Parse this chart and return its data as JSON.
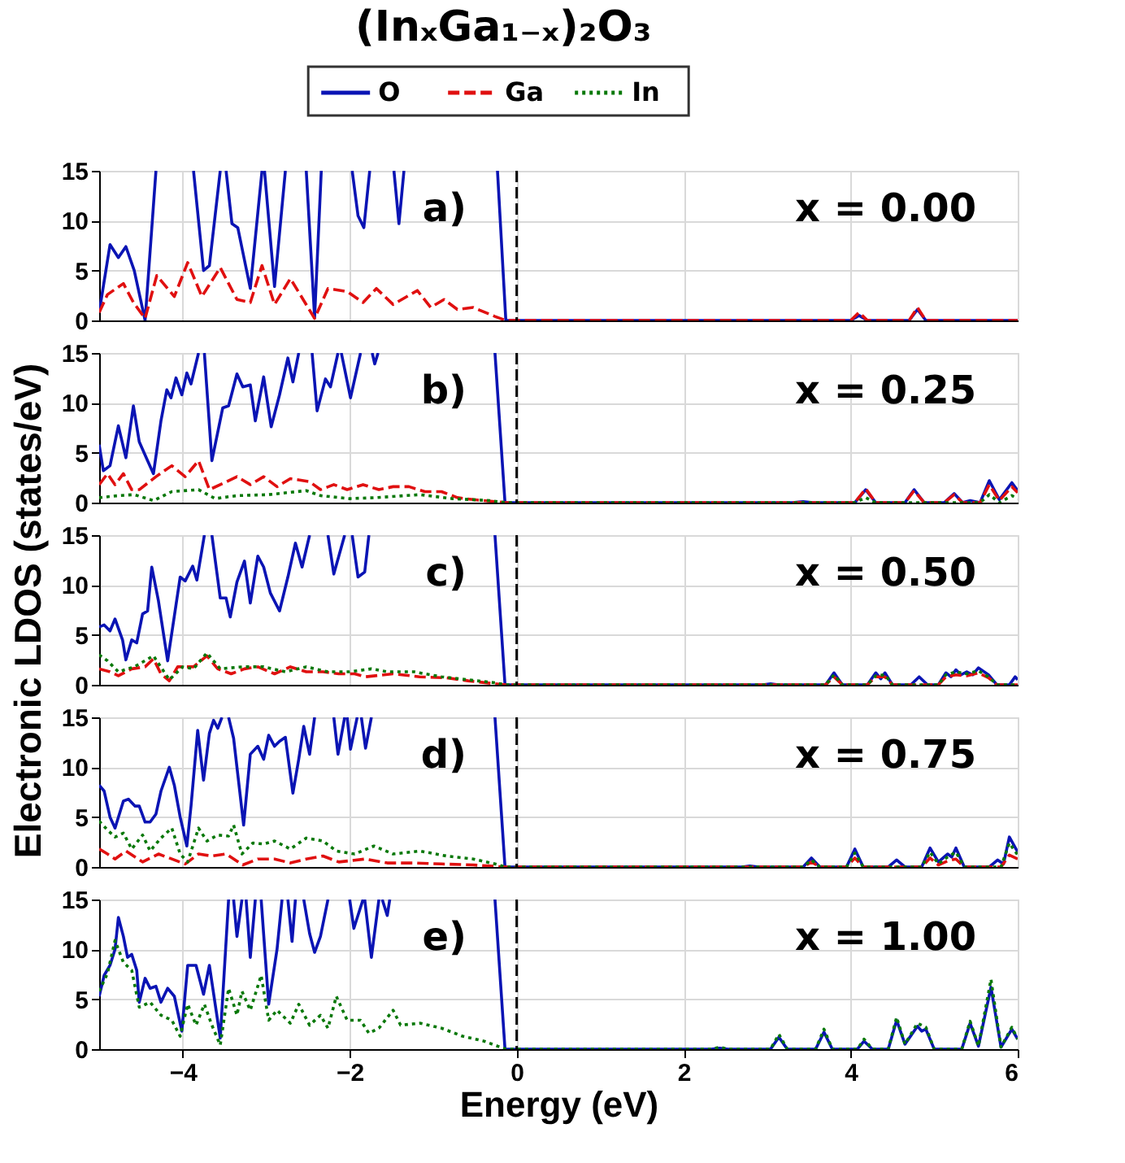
{
  "chart_data": [
    {
      "type": "line",
      "title": "(InₓGa₁₋ₓ)₂O₃",
      "legend": "top",
      "xlim": [
        -5,
        6
      ],
      "xticks": [
        -4,
        -2,
        0,
        2,
        4,
        6
      ],
      "ylim": [
        0,
        15
      ],
      "yticks": [
        0,
        5,
        10,
        15
      ],
      "grid": true,
      "tick_labels": "y",
      "annotations": [
        "a)",
        "x = 0.00"
      ],
      "ref_lines": [
        {
          "axis": "x",
          "value": 0,
          "color": "#000000",
          "line_style": "dashed"
        }
      ],
      "series": [
        {
          "name": "O",
          "color": "#0a14b4",
          "line_style": "solid",
          "x": [
            -5.0,
            -4.87,
            -4.77,
            -4.68,
            -4.58,
            -4.45,
            -4.32,
            -4.26,
            -3.87,
            -3.75,
            -3.68,
            -3.55,
            -3.52,
            -3.48,
            -3.41,
            -3.34,
            -3.19,
            -3.05,
            -3.04,
            -3.02,
            -2.9,
            -2.77,
            -2.6,
            -2.52,
            -2.42,
            -2.34,
            -2.1,
            -1.97,
            -1.9,
            -1.83,
            -1.76,
            -1.6,
            -1.47,
            -1.41,
            -1.35,
            -0.8,
            -0.23,
            -0.13,
            4.0,
            4.1,
            4.2,
            4.7,
            4.8,
            4.9,
            6
          ],
          "values": [
            0.8,
            7.6,
            6.3,
            7.4,
            5,
            0,
            15,
            null,
            15,
            5,
            5.5,
            15,
            null,
            15,
            9.7,
            9.3,
            3.2,
            15,
            null,
            15,
            3.4,
            15,
            null,
            15,
            0.3,
            15,
            null,
            15,
            10.5,
            9.3,
            15,
            null,
            15,
            9.7,
            15,
            null,
            15,
            0,
            0,
            0.5,
            0,
            0,
            1.1,
            0,
            0
          ]
        },
        {
          "name": "Ga",
          "color": "#e01010",
          "line_style": "dashed",
          "x": [
            -5.0,
            -4.9,
            -4.71,
            -4.59,
            -4.45,
            -4.31,
            -4.1,
            -3.94,
            -3.77,
            -3.55,
            -3.35,
            -3.19,
            -3.05,
            -2.9,
            -2.71,
            -2.42,
            -2.26,
            -2.03,
            -1.84,
            -1.68,
            -1.48,
            -1.19,
            -1.03,
            -0.87,
            -0.71,
            -0.52,
            -0.26,
            -0.13,
            4.0,
            4.1,
            4.2,
            4.7,
            4.8,
            4.9,
            6
          ],
          "values": [
            0.8,
            2.6,
            3.7,
            1.8,
            0.2,
            4.5,
            2.4,
            5.8,
            2.4,
            5.3,
            2.1,
            1.8,
            5.5,
            1.6,
            4.2,
            0.2,
            3.2,
            2.9,
            1.8,
            3.2,
            1.6,
            3.0,
            1.3,
            2.1,
            1.1,
            1.3,
            0.4,
            0,
            0,
            0.8,
            0,
            0,
            1.3,
            0,
            0
          ]
        }
      ]
    },
    {
      "type": "line",
      "xlim": [
        -5,
        6
      ],
      "xticks": [
        -4,
        -2,
        0,
        2,
        4,
        6
      ],
      "ylim": [
        0,
        15
      ],
      "yticks": [
        0,
        5,
        10,
        15
      ],
      "grid": true,
      "tick_labels": "y",
      "annotations": [
        "b)",
        "x = 0.25"
      ],
      "ref_lines": [
        {
          "axis": "x",
          "value": 0,
          "color": "#000000",
          "line_style": "dashed"
        }
      ],
      "series": [
        {
          "name": "O",
          "color": "#0a14b4",
          "line_style": "solid",
          "x": [
            -5.0,
            -4.95,
            -4.87,
            -4.77,
            -4.68,
            -4.59,
            -4.52,
            -4.42,
            -4.35,
            -4.26,
            -4.19,
            -4.14,
            -4.08,
            -4.01,
            -3.95,
            -3.9,
            -3.81,
            -3.78,
            -3.74,
            -3.65,
            -3.52,
            -3.45,
            -3.35,
            -3.28,
            -3.19,
            -3.13,
            -3.03,
            -2.94,
            -2.84,
            -2.74,
            -2.68,
            -2.61,
            -2.55,
            -2.45,
            -2.39,
            -2.29,
            -2.23,
            -2.14,
            -2.12,
            -2.1,
            -1.99,
            -1.87,
            -1.8,
            -1.73,
            -1.7,
            -1.66,
            -1.0,
            -0.26,
            -0.14,
            3.3,
            3.43,
            3.55,
            4.05,
            4.18,
            4.3,
            4.65,
            4.76,
            4.88,
            5.12,
            5.24,
            5.34,
            5.43,
            5.55,
            5.66,
            5.78,
            5.93,
            6
          ],
          "values": [
            5.8,
            3.2,
            3.7,
            7.7,
            4.5,
            9.7,
            6.1,
            4.2,
            2.9,
            8.2,
            11.3,
            10.5,
            12.5,
            10.8,
            13,
            11.9,
            15,
            null,
            15,
            4.2,
            9.5,
            9.7,
            12.9,
            11.6,
            11.8,
            8.2,
            12.6,
            7.6,
            10.8,
            14.5,
            12.1,
            15,
            null,
            15,
            9.2,
            12.4,
            11.6,
            15,
            null,
            15,
            10.5,
            15,
            null,
            15,
            13.9,
            15,
            null,
            15,
            0,
            0,
            0.1,
            0,
            0,
            1.3,
            0,
            0,
            1.3,
            0,
            0,
            0.9,
            0,
            0.2,
            0,
            2.2,
            0.3,
            2.0,
            1.2
          ]
        },
        {
          "name": "Ga",
          "color": "#e01010",
          "line_style": "dashed",
          "x": [
            -5.0,
            -4.9,
            -4.81,
            -4.71,
            -4.61,
            -4.52,
            -4.32,
            -4.13,
            -3.97,
            -3.81,
            -3.68,
            -3.55,
            -3.35,
            -3.19,
            -3.03,
            -2.87,
            -2.71,
            -2.48,
            -2.35,
            -2.19,
            -2.03,
            -1.84,
            -1.65,
            -1.48,
            -1.29,
            -1.1,
            -0.9,
            -0.71,
            -0.52,
            -0.26,
            -0.13,
            4.05,
            4.18,
            4.3,
            4.65,
            4.76,
            4.88,
            5.12,
            5.24,
            5.34,
            5.55,
            5.66,
            5.78,
            5.93,
            6
          ],
          "values": [
            1.8,
            2.9,
            1.8,
            2.9,
            1.3,
            1.3,
            2.6,
            3.7,
            2.6,
            4.2,
            1.3,
            1.8,
            2.6,
            1.8,
            2.6,
            1.6,
            2.4,
            2.1,
            1.3,
            1.8,
            1.3,
            1.8,
            1.3,
            1.6,
            1.6,
            1.1,
            1.1,
            0.5,
            0.3,
            0.1,
            0,
            0,
            1.4,
            0,
            0,
            1.2,
            0,
            0,
            0.8,
            0,
            0,
            1.8,
            0.2,
            1.6,
            1.0
          ]
        },
        {
          "name": "In",
          "color": "#087808",
          "line_style": "dotted",
          "x": [
            -5.0,
            -4.77,
            -4.58,
            -4.35,
            -4.13,
            -3.81,
            -3.61,
            -3.35,
            -2.97,
            -2.52,
            -2.35,
            -2.0,
            -1.68,
            -1.16,
            -0.77,
            -0.32,
            -0.13,
            4.05,
            4.18,
            4.3,
            5.55,
            5.66,
            5.78,
            5.93,
            6
          ],
          "values": [
            0.5,
            0.7,
            0.8,
            0.2,
            1.1,
            1.3,
            0.4,
            0.7,
            0.8,
            1.2,
            0.7,
            0.4,
            0.5,
            0.8,
            0.4,
            0.2,
            0,
            0,
            0.5,
            0,
            0,
            0.8,
            0,
            0.7,
            0.4
          ]
        }
      ]
    },
    {
      "type": "line",
      "ylabel": "Electronic LDOS (states/eV)",
      "xlim": [
        -5,
        6
      ],
      "xticks": [
        -4,
        -2,
        0,
        2,
        4,
        6
      ],
      "ylim": [
        0,
        15
      ],
      "yticks": [
        0,
        5,
        10,
        15
      ],
      "grid": true,
      "tick_labels": "y",
      "annotations": [
        "c)",
        "x = 0.50"
      ],
      "ref_lines": [
        {
          "axis": "x",
          "value": 0,
          "color": "#000000",
          "line_style": "dashed"
        }
      ],
      "series": [
        {
          "name": "O",
          "color": "#0a14b4",
          "line_style": "solid",
          "x": [
            -5.0,
            -4.94,
            -4.87,
            -4.81,
            -4.72,
            -4.68,
            -4.61,
            -4.55,
            -4.48,
            -4.42,
            -4.37,
            -4.29,
            -4.18,
            -4.03,
            -3.97,
            -3.88,
            -3.83,
            -3.74,
            -3.7,
            -3.65,
            -3.55,
            -3.48,
            -3.43,
            -3.35,
            -3.26,
            -3.19,
            -3.1,
            -3.03,
            -2.95,
            -2.84,
            -2.74,
            -2.65,
            -2.57,
            -2.48,
            -2.4,
            -2.26,
            -2.19,
            -2.13,
            -2.06,
            -2.0,
            -1.97,
            -1.9,
            -1.82,
            -1.77,
            -1.0,
            -0.26,
            -0.14,
            2.95,
            3.04,
            3.13,
            3.7,
            3.8,
            3.9,
            4.2,
            4.3,
            4.36,
            4.41,
            4.5,
            4.72,
            4.82,
            4.92,
            5.05,
            5.14,
            5.2,
            5.26,
            5.32,
            5.39,
            5.46,
            5.53,
            5.65,
            5.75,
            5.9,
            5.97,
            6
          ],
          "values": [
            5.8,
            6.0,
            5.4,
            6.6,
            4.5,
            2.5,
            4.5,
            4.2,
            7.1,
            7.4,
            11.8,
            8.4,
            2.4,
            10.8,
            10.4,
            11.9,
            10.5,
            15,
            null,
            15,
            8.7,
            8.7,
            6.8,
            10.3,
            12.4,
            8.2,
            12.9,
            11.8,
            9.2,
            7.4,
            10.8,
            14.2,
            11.8,
            15,
            null,
            15,
            11.1,
            12.9,
            15,
            null,
            15,
            10.8,
            11.3,
            15,
            null,
            15,
            0,
            0,
            0.1,
            0,
            0,
            1.2,
            0,
            0,
            1.2,
            0.6,
            1.2,
            0,
            0,
            0.8,
            0,
            0,
            1.2,
            0.8,
            1.5,
            1.0,
            1.3,
            1.0,
            1.7,
            1.0,
            0,
            0,
            0.8,
            0.5
          ]
        },
        {
          "name": "Ga",
          "color": "#e01010",
          "line_style": "dashed",
          "x": [
            -5.0,
            -4.87,
            -4.77,
            -4.61,
            -4.45,
            -4.35,
            -4.26,
            -4.16,
            -4.06,
            -3.87,
            -3.71,
            -3.58,
            -3.42,
            -3.26,
            -3.1,
            -2.9,
            -2.71,
            -2.52,
            -2.32,
            -2.13,
            -1.94,
            -1.81,
            -1.48,
            -1.16,
            -0.84,
            -0.58,
            -0.26,
            -0.13,
            3.7,
            3.8,
            3.9,
            4.2,
            4.3,
            4.41,
            4.5,
            5.05,
            5.14,
            5.26,
            5.39,
            5.53,
            5.65,
            5.75,
            6
          ],
          "values": [
            1.6,
            1.3,
            0.9,
            1.6,
            1.8,
            2.6,
            1.1,
            0.4,
            1.8,
            1.8,
            2.9,
            1.6,
            1.1,
            1.6,
            1.8,
            1.1,
            1.8,
            1.3,
            1.3,
            1.1,
            1.1,
            0.8,
            1.1,
            0.8,
            0.7,
            0.4,
            0.1,
            0,
            0,
            0.8,
            0,
            0,
            0.8,
            0.8,
            0,
            0,
            0.8,
            1.0,
            0.9,
            1.2,
            0.7,
            0,
            0
          ]
        },
        {
          "name": "In",
          "color": "#087808",
          "line_style": "dotted",
          "x": [
            -5.0,
            -4.9,
            -4.77,
            -4.58,
            -4.35,
            -4.16,
            -4.0,
            -3.87,
            -3.71,
            -3.55,
            -3.29,
            -3.03,
            -2.77,
            -2.52,
            -2.26,
            -2.0,
            -1.74,
            -1.55,
            -1.23,
            -0.9,
            -0.58,
            -0.26,
            -0.13,
            3.7,
            3.8,
            3.9,
            4.2,
            4.3,
            4.41,
            4.5,
            5.05,
            5.14,
            5.26,
            5.39,
            5.53,
            5.65,
            5.75,
            6
          ],
          "values": [
            3.0,
            2.4,
            1.3,
            1.8,
            2.9,
            0.5,
            1.8,
            1.6,
            3.2,
            1.6,
            1.8,
            1.8,
            1.3,
            1.8,
            1.3,
            1.3,
            1.6,
            1.3,
            1.3,
            0.8,
            0.5,
            0.2,
            0,
            0,
            1.0,
            0,
            0,
            0.9,
            1.0,
            0,
            0,
            1.0,
            1.3,
            1.1,
            1.4,
            0.8,
            0,
            0
          ]
        }
      ]
    },
    {
      "type": "line",
      "xlim": [
        -5,
        6
      ],
      "xticks": [
        -4,
        -2,
        0,
        2,
        4,
        6
      ],
      "ylim": [
        0,
        15
      ],
      "yticks": [
        0,
        5,
        10,
        15
      ],
      "grid": true,
      "tick_labels": "y",
      "annotations": [
        "d)",
        "x = 0.75"
      ],
      "ref_lines": [
        {
          "axis": "x",
          "value": 0,
          "color": "#000000",
          "line_style": "dashed"
        }
      ],
      "series": [
        {
          "name": "O",
          "color": "#0a14b4",
          "line_style": "solid",
          "x": [
            -5.0,
            -4.94,
            -4.87,
            -4.81,
            -4.71,
            -4.65,
            -4.57,
            -4.52,
            -4.45,
            -4.39,
            -4.32,
            -4.26,
            -4.16,
            -4.1,
            -4.03,
            -3.95,
            -3.9,
            -3.82,
            -3.75,
            -3.68,
            -3.63,
            -3.58,
            -3.53,
            -3.5,
            -3.45,
            -3.39,
            -3.27,
            -3.19,
            -3.1,
            -3.03,
            -2.97,
            -2.9,
            -2.84,
            -2.77,
            -2.68,
            -2.61,
            -2.55,
            -2.48,
            -2.42,
            -2.3,
            -2.19,
            -2.14,
            -2.06,
            -2.04,
            -2.03,
            -1.99,
            -1.91,
            -1.89,
            -1.86,
            -1.81,
            -1.74,
            -1.0,
            -0.26,
            -0.14,
            2.7,
            2.79,
            2.9,
            3.43,
            3.53,
            3.63,
            3.95,
            4.05,
            4.15,
            4.45,
            4.55,
            4.65,
            4.85,
            4.95,
            5.05,
            5.16,
            5.21,
            5.26,
            5.36,
            5.66,
            5.76,
            5.83,
            5.9,
            6
          ],
          "values": [
            8.2,
            7.6,
            5.0,
            3.9,
            6.6,
            6.8,
            6.1,
            6.1,
            4.5,
            4.5,
            5.3,
            7.6,
            10.0,
            8.2,
            5.0,
            2.1,
            6.1,
            13.7,
            8.7,
            13.4,
            14.7,
            13.9,
            15,
            null,
            15,
            12.9,
            4.2,
            11.3,
            12.1,
            10.8,
            13.2,
            12.1,
            12.6,
            13.0,
            7.4,
            10.8,
            14.1,
            11.3,
            15,
            null,
            15,
            11.3,
            15,
            null,
            15,
            11.8,
            15,
            null,
            15,
            11.9,
            15,
            null,
            15,
            0,
            0,
            0.1,
            0,
            0,
            0.9,
            0,
            0,
            1.8,
            0,
            0,
            0.7,
            0,
            0,
            1.9,
            0.5,
            1.3,
            1.0,
            1.9,
            0,
            0,
            0.7,
            0.3,
            3.0,
            1.5
          ]
        },
        {
          "name": "Ga",
          "color": "#e01010",
          "line_style": "dashed",
          "x": [
            -5.0,
            -4.9,
            -4.81,
            -4.68,
            -4.48,
            -4.29,
            -4.13,
            -3.97,
            -3.81,
            -3.65,
            -3.48,
            -3.28,
            -3.1,
            -2.9,
            -2.71,
            -2.52,
            -2.32,
            -2.13,
            -1.81,
            -1.55,
            -1.23,
            -0.9,
            -0.52,
            -0.13,
            3.43,
            3.53,
            3.63,
            3.95,
            4.05,
            4.15,
            4.85,
            4.95,
            5.05,
            5.16,
            5.26,
            5.36,
            5.8,
            5.9,
            6
          ],
          "values": [
            1.8,
            1.3,
            0.8,
            1.6,
            0.5,
            1.3,
            0.8,
            0.3,
            1.3,
            1.1,
            1.3,
            0.2,
            0.8,
            0.8,
            0.4,
            0.8,
            1.1,
            0.5,
            0.8,
            0.4,
            0.4,
            0.3,
            0.2,
            0,
            0,
            0.5,
            0,
            0,
            0.9,
            0,
            0,
            0.9,
            0.2,
            0.6,
            0.8,
            0,
            0,
            1.2,
            0.8
          ]
        },
        {
          "name": "In",
          "color": "#087808",
          "line_style": "dotted",
          "x": [
            -5.0,
            -4.9,
            -4.81,
            -4.71,
            -4.61,
            -4.48,
            -4.39,
            -4.26,
            -4.13,
            -4.03,
            -3.94,
            -3.81,
            -3.71,
            -3.58,
            -3.45,
            -3.39,
            -3.29,
            -3.16,
            -3.03,
            -2.9,
            -2.71,
            -2.52,
            -2.32,
            -2.16,
            -1.94,
            -1.71,
            -1.48,
            -1.16,
            -0.84,
            -0.52,
            -0.26,
            -0.13,
            3.43,
            3.53,
            3.63,
            3.95,
            4.05,
            4.15,
            4.85,
            4.95,
            5.05,
            5.16,
            5.26,
            5.36,
            5.8,
            5.9,
            6
          ],
          "values": [
            4.6,
            3.7,
            3.0,
            3.4,
            1.8,
            3.2,
            1.6,
            2.9,
            3.9,
            1.3,
            0.5,
            3.9,
            2.6,
            3.2,
            3.1,
            4.2,
            1.3,
            2.4,
            2.3,
            2.6,
            1.8,
            2.9,
            2.6,
            1.6,
            1.3,
            2.1,
            1.3,
            1.6,
            1.1,
            0.8,
            0.3,
            0,
            0,
            0.7,
            0,
            0,
            1.4,
            0,
            0,
            1.5,
            0.3,
            1.0,
            1.5,
            0,
            0,
            2.4,
            1.2
          ]
        }
      ]
    },
    {
      "type": "line",
      "xlabel": "Energy (eV)",
      "xlim": [
        -5,
        6
      ],
      "xticks": [
        -4,
        -2,
        0,
        2,
        4,
        6
      ],
      "ylim": [
        0,
        15
      ],
      "yticks": [
        0,
        5,
        10,
        15
      ],
      "grid": true,
      "annotations": [
        "e)",
        "x = 1.00"
      ],
      "ref_lines": [
        {
          "axis": "x",
          "value": 0,
          "color": "#000000",
          "line_style": "dashed"
        }
      ],
      "series": [
        {
          "name": "O",
          "color": "#0a14b4",
          "line_style": "solid",
          "x": [
            -5.0,
            -4.94,
            -4.87,
            -4.81,
            -4.77,
            -4.71,
            -4.66,
            -4.61,
            -4.55,
            -4.52,
            -4.45,
            -4.39,
            -4.32,
            -4.26,
            -4.18,
            -4.1,
            -4.01,
            -3.94,
            -3.84,
            -3.75,
            -3.68,
            -3.55,
            -3.45,
            -3.42,
            -3.39,
            -3.35,
            -3.29,
            -3.27,
            -3.24,
            -3.19,
            -3.13,
            -3.1,
            -3.06,
            -2.97,
            -2.87,
            -2.81,
            -2.78,
            -2.74,
            -2.69,
            -2.65,
            -2.6,
            -2.55,
            -2.48,
            -2.42,
            -2.35,
            -2.26,
            -2.1,
            -2.0,
            -1.95,
            -1.84,
            -1.83,
            -1.82,
            -1.74,
            -1.65,
            -1.64,
            -1.61,
            -1.55,
            -1.52,
            -1.0,
            -0.26,
            -0.14,
            2.33,
            2.43,
            2.53,
            3.04,
            3.14,
            3.24,
            3.58,
            3.68,
            3.78,
            4.08,
            4.16,
            4.26,
            4.45,
            4.55,
            4.65,
            4.8,
            4.85,
            4.9,
            5.0,
            5.33,
            5.43,
            5.53,
            5.68,
            5.8,
            5.93,
            6
          ],
          "values": [
            5.3,
            7.4,
            8.4,
            10,
            13.2,
            11.3,
            9.2,
            9.5,
            7.9,
            4.7,
            7.1,
            6.1,
            6.3,
            4.7,
            6.1,
            5.3,
            1.8,
            8.4,
            8.4,
            5.5,
            8.4,
            1.1,
            15,
            null,
            15,
            11.3,
            15,
            null,
            15,
            9.2,
            15,
            null,
            15,
            4.5,
            10,
            15,
            null,
            15,
            10.8,
            15,
            null,
            15,
            11.6,
            9.7,
            11.3,
            15,
            null,
            15,
            12.1,
            15,
            null,
            15,
            9.2,
            15,
            null,
            15,
            13.4,
            15,
            null,
            15,
            0,
            0,
            0.1,
            0,
            0,
            1.2,
            0,
            0,
            1.7,
            0,
            0,
            0.8,
            0,
            0,
            2.9,
            0.5,
            2.3,
            1.8,
            2.0,
            0,
            0,
            2.6,
            0.3,
            6.2,
            0.2,
            2.0,
            1.0
          ]
        },
        {
          "name": "In",
          "color": "#087808",
          "line_style": "dotted",
          "x": [
            -5.0,
            -4.9,
            -4.81,
            -4.71,
            -4.61,
            -4.52,
            -4.39,
            -4.26,
            -4.13,
            -4.03,
            -3.94,
            -3.84,
            -3.74,
            -3.65,
            -3.55,
            -3.45,
            -3.35,
            -3.29,
            -3.19,
            -3.06,
            -2.97,
            -2.87,
            -2.71,
            -2.61,
            -2.48,
            -2.35,
            -2.26,
            -2.16,
            -2.03,
            -1.87,
            -1.77,
            -1.65,
            -1.48,
            -1.39,
            -1.16,
            -0.9,
            -0.65,
            -0.39,
            -0.13,
            2.33,
            2.43,
            2.53,
            3.04,
            3.14,
            3.24,
            3.58,
            3.68,
            3.78,
            4.08,
            4.16,
            4.26,
            4.45,
            4.55,
            4.65,
            4.8,
            4.9,
            5.0,
            5.33,
            5.43,
            5.53,
            5.68,
            5.8,
            5.93,
            6
          ],
          "values": [
            5.8,
            7.6,
            10.9,
            8.7,
            7.9,
            4.2,
            4.7,
            3.4,
            2.9,
            1.3,
            4.5,
            2.4,
            4.5,
            2.4,
            0.4,
            6.1,
            3.4,
            5.8,
            3.9,
            7.4,
            2.9,
            3.9,
            2.6,
            4.5,
            2.4,
            3.4,
            2.1,
            5.3,
            2.9,
            2.9,
            1.6,
            2.1,
            3.9,
            2.4,
            2.6,
            2.1,
            1.3,
            0.8,
            0,
            0,
            0.2,
            0,
            0,
            1.5,
            0,
            0,
            2.0,
            0,
            0,
            1.0,
            0,
            0,
            3.2,
            0.5,
            2.6,
            2.2,
            0,
            0,
            2.8,
            0.3,
            7.0,
            0.2,
            2.2,
            1.0
          ]
        }
      ]
    }
  ]
}
